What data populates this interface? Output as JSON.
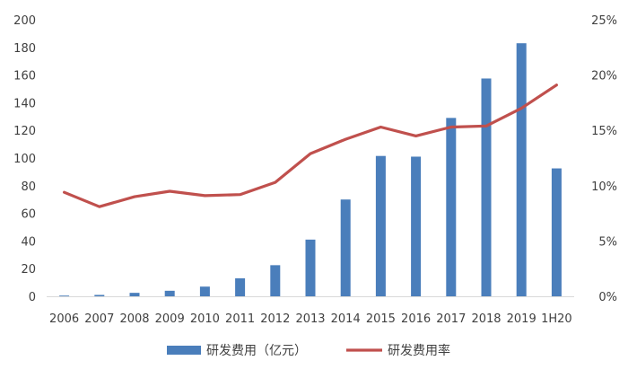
{
  "chart_data": {
    "type": "bar",
    "categories": [
      "2006",
      "2007",
      "2008",
      "2009",
      "2010",
      "2011",
      "2012",
      "2013",
      "2014",
      "2015",
      "2016",
      "2017",
      "2018",
      "2019",
      "1H20"
    ],
    "series": [
      {
        "name": "研发费用（亿元）",
        "type": "bar",
        "axis": "left",
        "color": "#4a7ebb",
        "values": [
          0.5,
          1,
          2.5,
          4,
          7,
          13,
          22.5,
          41,
          70,
          101.5,
          101,
          129,
          157.5,
          183,
          92.5
        ]
      },
      {
        "name": "研发费用率",
        "type": "line",
        "axis": "right",
        "color": "#c0504d",
        "values": [
          9.4,
          8.1,
          9.0,
          9.5,
          9.1,
          9.2,
          10.3,
          12.9,
          14.2,
          15.3,
          14.5,
          15.3,
          15.4,
          17.0,
          19.1
        ]
      }
    ],
    "y_left": {
      "min": 0,
      "max": 200,
      "ticks": [
        0,
        20,
        40,
        60,
        80,
        100,
        120,
        140,
        160,
        180,
        200
      ]
    },
    "y_right": {
      "min": 0,
      "max": 25,
      "ticks": [
        "0%",
        "5%",
        "10%",
        "15%",
        "20%",
        "25%"
      ]
    },
    "legend": {
      "position": "bottom"
    },
    "grid": false
  }
}
